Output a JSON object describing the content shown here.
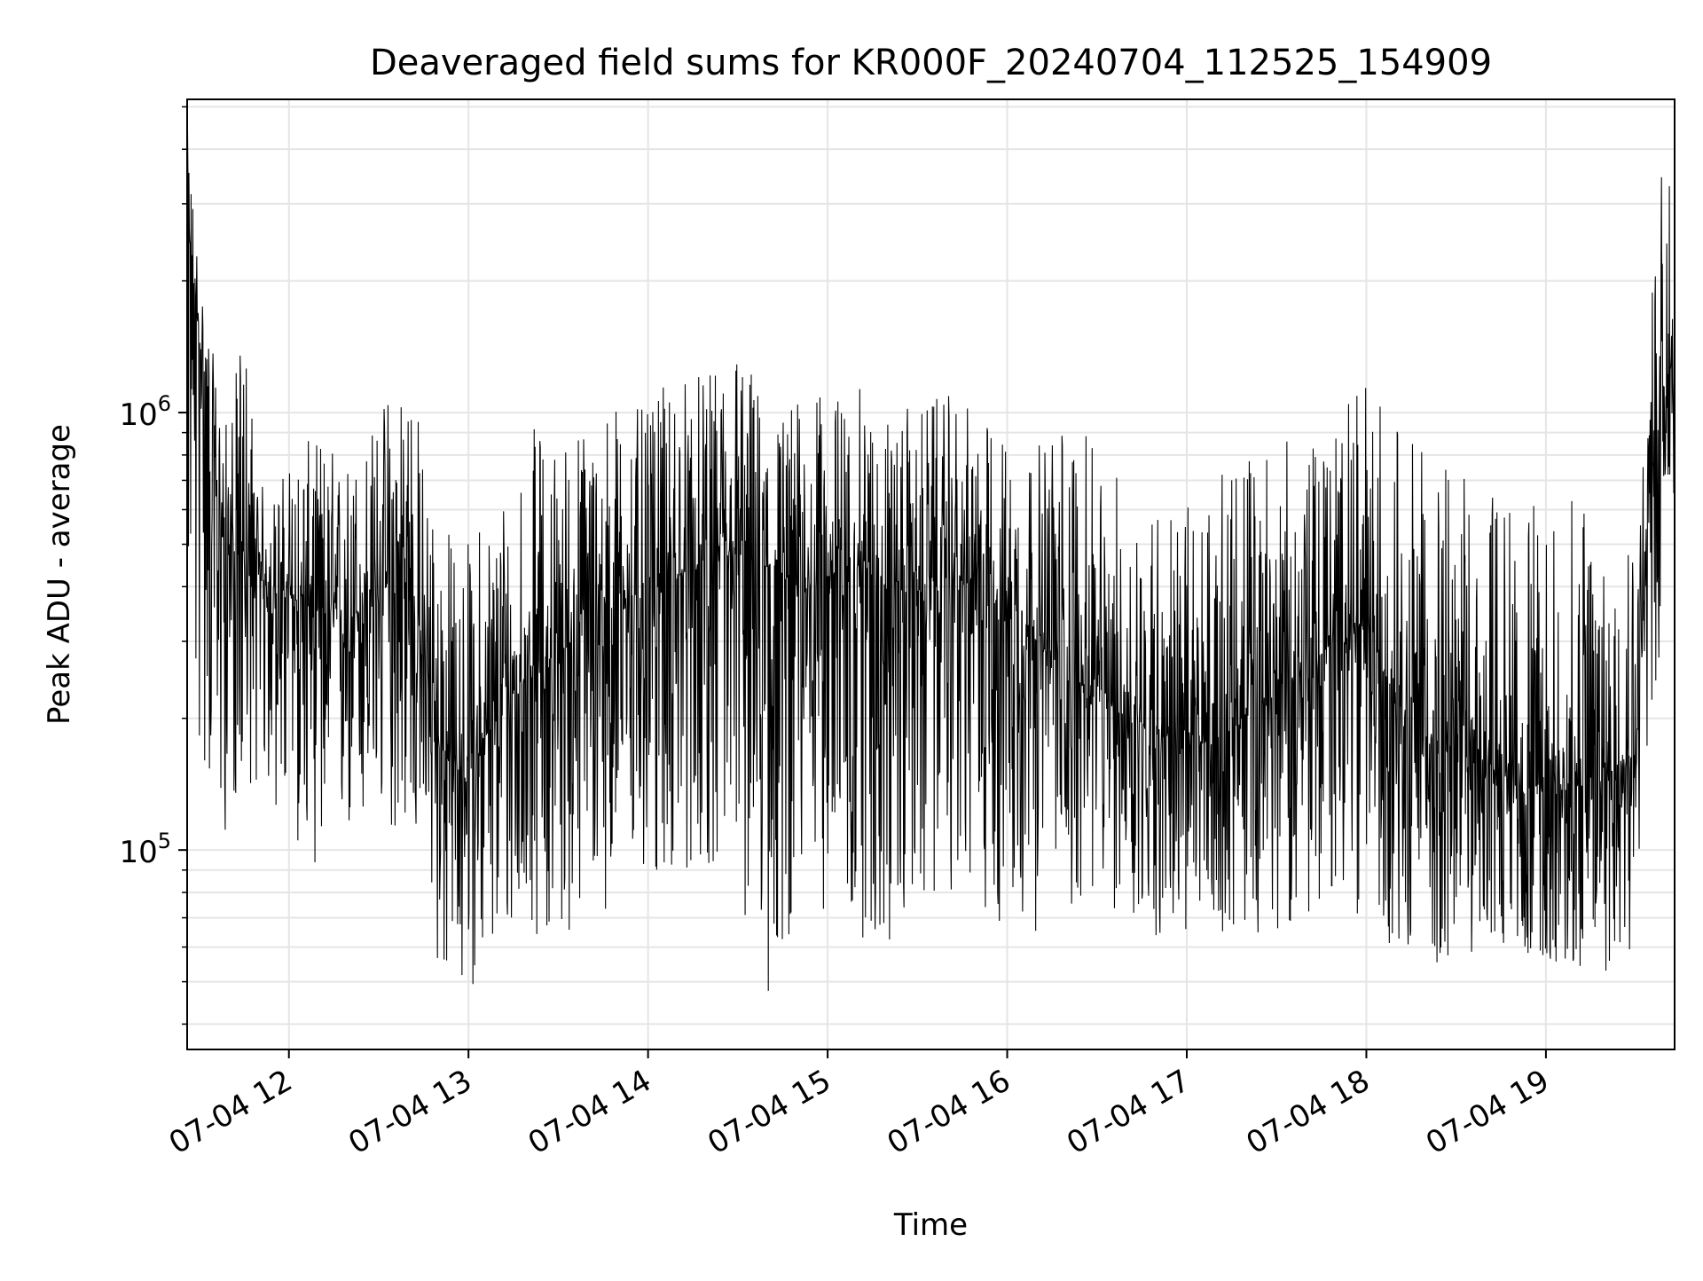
{
  "chart_data": {
    "type": "line",
    "title": "Deaveraged field sums for KR000F_20240704_112525_154909",
    "xlabel": "Time",
    "ylabel": "Peak ADU - average",
    "y_scale": "log",
    "ylim": [
      35000,
      5200000
    ],
    "xlim": [
      "2024-07-04 11:26",
      "2024-07-04 19:43"
    ],
    "x_ticks": [
      {
        "x": "2024-07-04 12:00",
        "label": "07-04 12"
      },
      {
        "x": "2024-07-04 13:00",
        "label": "07-04 13"
      },
      {
        "x": "2024-07-04 14:00",
        "label": "07-04 14"
      },
      {
        "x": "2024-07-04 15:00",
        "label": "07-04 15"
      },
      {
        "x": "2024-07-04 16:00",
        "label": "07-04 16"
      },
      {
        "x": "2024-07-04 17:00",
        "label": "07-04 17"
      },
      {
        "x": "2024-07-04 18:00",
        "label": "07-04 18"
      },
      {
        "x": "2024-07-04 19:00",
        "label": "07-04 19"
      }
    ],
    "y_ticks": [
      {
        "value": 100000,
        "base": "10",
        "exp": "5"
      },
      {
        "value": 1000000,
        "base": "10",
        "exp": "6"
      }
    ],
    "grid": true,
    "line_color": "#000000",
    "series": [
      {
        "x": [
          "2024-07-04 11:26",
          "2024-07-04 11:28",
          "2024-07-04 11:30",
          "2024-07-04 11:33",
          "2024-07-04 11:36",
          "2024-07-04 11:40",
          "2024-07-04 11:45",
          "2024-07-04 11:50",
          "2024-07-04 11:55",
          "2024-07-04 12:00",
          "2024-07-04 12:10",
          "2024-07-04 12:20",
          "2024-07-04 12:30",
          "2024-07-04 12:40",
          "2024-07-04 12:45",
          "2024-07-04 12:50",
          "2024-07-04 12:55",
          "2024-07-04 13:00",
          "2024-07-04 13:10",
          "2024-07-04 13:20",
          "2024-07-04 13:30",
          "2024-07-04 13:40",
          "2024-07-04 13:50",
          "2024-07-04 14:00",
          "2024-07-04 14:10",
          "2024-07-04 14:20",
          "2024-07-04 14:30",
          "2024-07-04 14:40",
          "2024-07-04 14:50",
          "2024-07-04 15:00",
          "2024-07-04 15:10",
          "2024-07-04 15:20",
          "2024-07-04 15:30",
          "2024-07-04 15:40",
          "2024-07-04 15:50",
          "2024-07-04 16:00",
          "2024-07-04 16:10",
          "2024-07-04 16:20",
          "2024-07-04 16:30",
          "2024-07-04 16:40",
          "2024-07-04 16:50",
          "2024-07-04 17:00",
          "2024-07-04 17:10",
          "2024-07-04 17:20",
          "2024-07-04 17:30",
          "2024-07-04 17:40",
          "2024-07-04 17:50",
          "2024-07-04 18:00",
          "2024-07-04 18:10",
          "2024-07-04 18:20",
          "2024-07-04 18:30",
          "2024-07-04 18:40",
          "2024-07-04 18:50",
          "2024-07-04 19:00",
          "2024-07-04 19:10",
          "2024-07-04 19:20",
          "2024-07-04 19:30",
          "2024-07-04 19:35",
          "2024-07-04 19:40",
          "2024-07-04 19:43"
        ],
        "median": [
          2800000,
          2000000,
          1500000,
          1000000,
          600000,
          500000,
          450000,
          420000,
          400000,
          380000,
          350000,
          330000,
          400000,
          380000,
          300000,
          180000,
          150000,
          160000,
          200000,
          260000,
          280000,
          330000,
          360000,
          400000,
          420000,
          450000,
          470000,
          440000,
          400000,
          420000,
          450000,
          400000,
          390000,
          420000,
          400000,
          370000,
          300000,
          250000,
          230000,
          200000,
          190000,
          170000,
          180000,
          200000,
          230000,
          260000,
          300000,
          320000,
          220000,
          180000,
          170000,
          160000,
          140000,
          140000,
          140000,
          150000,
          170000,
          700000,
          1200000,
          1300000
        ],
        "min": [
          400000,
          200000,
          150000,
          130000,
          100000,
          110000,
          140000,
          140000,
          120000,
          105000,
          90000,
          100000,
          105000,
          110000,
          90000,
          50000,
          45000,
          48000,
          55000,
          65000,
          60000,
          70000,
          75000,
          80000,
          85000,
          90000,
          78000,
          40000,
          75000,
          72000,
          62000,
          55000,
          70000,
          80000,
          75000,
          60000,
          65000,
          70000,
          78000,
          66000,
          62000,
          60000,
          65000,
          64000,
          66000,
          68000,
          70000,
          72000,
          58000,
          52000,
          55000,
          60000,
          58000,
          56000,
          50000,
          52000,
          60000,
          180000,
          300000,
          350000
        ],
        "max": [
          4500000,
          3200000,
          2200000,
          1600000,
          1200000,
          900000,
          1800000,
          700000,
          650000,
          800000,
          900000,
          800000,
          1000000,
          1700000,
          780000,
          600000,
          550000,
          520000,
          700000,
          950000,
          900000,
          1000000,
          1100000,
          1000000,
          1300000,
          1200000,
          1600000,
          1000000,
          1100000,
          1100000,
          1150000,
          1000000,
          1050000,
          1100000,
          1000000,
          900000,
          850000,
          1050000,
          800000,
          700000,
          650000,
          620000,
          700000,
          850000,
          900000,
          800000,
          1000000,
          1200000,
          1000000,
          800000,
          750000,
          700000,
          650000,
          600000,
          650000,
          620000,
          700000,
          1800000,
          4600000,
          3400000
        ]
      }
    ]
  }
}
